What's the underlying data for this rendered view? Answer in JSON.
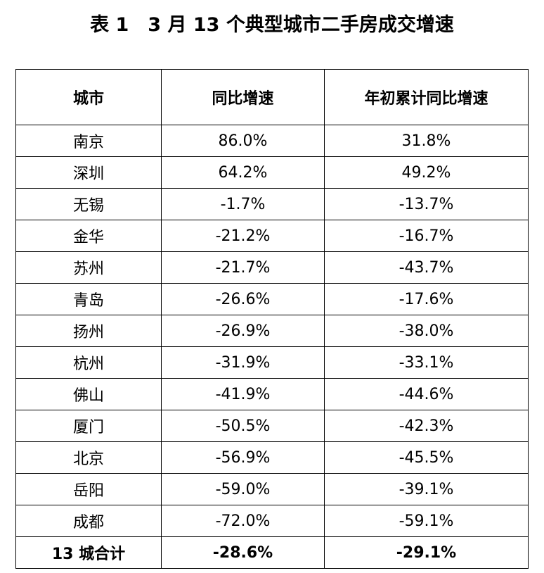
{
  "title": "表 1　3 月 13 个典型城市二手房成交增速",
  "table": {
    "headers": [
      "城市",
      "同比增速",
      "年初累计同比增速"
    ],
    "rows": [
      [
        "南京",
        "86.0%",
        "31.8%"
      ],
      [
        "深圳",
        "64.2%",
        "49.2%"
      ],
      [
        "无锡",
        "-1.7%",
        "-13.7%"
      ],
      [
        "金华",
        "-21.2%",
        "-16.7%"
      ],
      [
        "苏州",
        "-21.7%",
        "-43.7%"
      ],
      [
        "青岛",
        "-26.6%",
        "-17.6%"
      ],
      [
        "扬州",
        "-26.9%",
        "-38.0%"
      ],
      [
        "杭州",
        "-31.9%",
        "-33.1%"
      ],
      [
        "佛山",
        "-41.9%",
        "-44.6%"
      ],
      [
        "厦门",
        "-50.5%",
        "-42.3%"
      ],
      [
        "北京",
        "-56.9%",
        "-45.5%"
      ],
      [
        "岳阳",
        "-59.0%",
        "-39.1%"
      ],
      [
        "成都",
        "-72.0%",
        "-59.1%"
      ]
    ],
    "total": [
      "13 城合计",
      "-28.6%",
      "-29.1%"
    ]
  }
}
